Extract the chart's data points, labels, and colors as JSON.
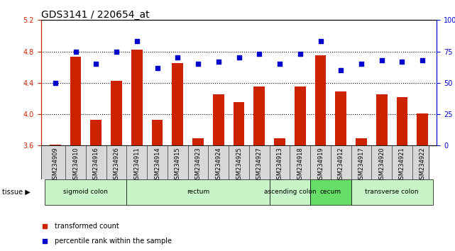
{
  "title": "GDS3141 / 220654_at",
  "samples": [
    "GSM234909",
    "GSM234910",
    "GSM234916",
    "GSM234926",
    "GSM234911",
    "GSM234914",
    "GSM234915",
    "GSM234923",
    "GSM234924",
    "GSM234925",
    "GSM234927",
    "GSM234913",
    "GSM234918",
    "GSM234919",
    "GSM234912",
    "GSM234917",
    "GSM234920",
    "GSM234921",
    "GSM234922"
  ],
  "bar_values": [
    3.61,
    4.73,
    3.93,
    4.43,
    4.82,
    3.93,
    4.65,
    3.69,
    4.25,
    4.15,
    4.35,
    3.69,
    4.35,
    4.75,
    4.29,
    3.69,
    4.25,
    4.22,
    4.01
  ],
  "dot_values": [
    50,
    75,
    65,
    75,
    83,
    62,
    70,
    65,
    67,
    70,
    73,
    65,
    73,
    83,
    60,
    65,
    68,
    67,
    68
  ],
  "ylim_left": [
    3.6,
    5.2
  ],
  "ylim_right": [
    0,
    100
  ],
  "yticks_left": [
    3.6,
    4.0,
    4.4,
    4.8,
    5.2
  ],
  "yticks_right": [
    0,
    25,
    50,
    75,
    100
  ],
  "hlines": [
    4.0,
    4.4,
    4.8
  ],
  "tissue_groups": [
    {
      "label": "sigmoid colon",
      "start": 0,
      "end": 3,
      "color": "#c8f5c8"
    },
    {
      "label": "rectum",
      "start": 4,
      "end": 10,
      "color": "#c8f5c8"
    },
    {
      "label": "ascending colon",
      "start": 11,
      "end": 12,
      "color": "#c8f5c8"
    },
    {
      "label": "cecum",
      "start": 13,
      "end": 14,
      "color": "#66dd66"
    },
    {
      "label": "transverse colon",
      "start": 15,
      "end": 18,
      "color": "#c8f5c8"
    }
  ],
  "bar_color": "#cc2200",
  "dot_color": "#0000cc",
  "bar_width": 0.55,
  "title_fontsize": 10,
  "tick_fontsize": 7,
  "left_tick_color": "#cc2200",
  "right_tick_color": "#0000cc",
  "legend_items": [
    {
      "label": "transformed count",
      "color": "#cc2200"
    },
    {
      "label": "percentile rank within the sample",
      "color": "#0000cc"
    }
  ],
  "xtick_bg_color": "#d8d8d8",
  "plot_bg_color": "#ffffff"
}
